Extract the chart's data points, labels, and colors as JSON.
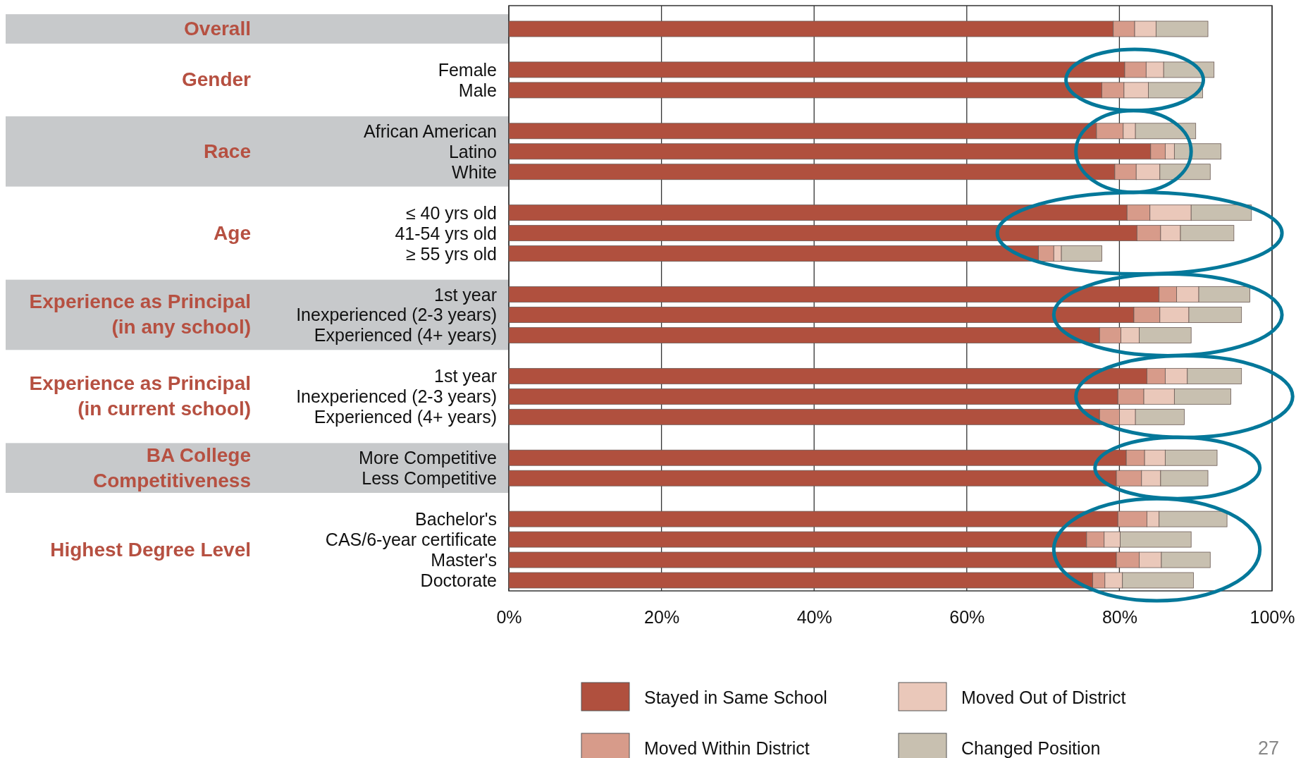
{
  "chart_data": {
    "type": "bar",
    "orientation": "horizontal",
    "stacked": true,
    "categories": [
      null,
      "Female",
      "Male",
      "African American",
      "Latino",
      "White",
      "≤ 40 yrs old",
      "41-54 yrs old",
      "≥ 55 yrs old",
      "1st year",
      "Inexperienced (2-3 years)",
      "Experienced (4+ years)",
      "1st year",
      "Inexperienced (2-3 years)",
      "Experienced (4+ years)",
      "More Competitive",
      "Less Competitive",
      "Bachelor's",
      "CAS/6-year certificate",
      "Master's",
      "Doctorate"
    ],
    "series": [
      {
        "name": "Stayed in Same School",
        "color": "#b0503e",
        "values": [
          79.2,
          80.7,
          77.7,
          77.0,
          84.1,
          79.4,
          81.0,
          82.3,
          69.4,
          85.2,
          81.9,
          77.4,
          83.6,
          79.8,
          77.4,
          80.9,
          79.6,
          79.8,
          75.7,
          79.6,
          76.5
        ]
      },
      {
        "name": "Moved Within District",
        "color": "#d79b8a",
        "values": [
          2.8,
          2.8,
          2.9,
          3.5,
          1.9,
          2.8,
          3.0,
          3.1,
          2.0,
          2.3,
          3.4,
          2.8,
          2.4,
          3.4,
          2.6,
          2.4,
          3.3,
          3.8,
          2.3,
          3.0,
          1.6
        ]
      },
      {
        "name": "Moved Out of District",
        "color": "#eac8ba",
        "values": [
          2.8,
          2.3,
          3.2,
          1.6,
          1.2,
          3.1,
          5.4,
          2.6,
          1.0,
          2.9,
          3.8,
          2.4,
          2.9,
          4.0,
          2.1,
          2.7,
          2.5,
          1.6,
          2.1,
          2.9,
          2.3
        ]
      },
      {
        "name": "Changed  Position",
        "color": "#c8c0b0",
        "values": [
          6.8,
          6.6,
          7.1,
          7.9,
          6.1,
          6.6,
          7.9,
          7.0,
          5.3,
          6.7,
          6.9,
          6.8,
          7.1,
          7.4,
          6.4,
          6.8,
          6.2,
          8.9,
          9.3,
          6.4,
          9.3
        ]
      }
    ],
    "xlim": [
      0,
      100
    ],
    "xticks": [
      {
        "value": 0,
        "label": "0%"
      },
      {
        "value": 20,
        "label": "20%"
      },
      {
        "value": 40,
        "label": "40%"
      },
      {
        "value": 60,
        "label": "60%"
      },
      {
        "value": 80,
        "label": "80%"
      },
      {
        "value": 100,
        "label": "100%"
      }
    ],
    "grid": "x",
    "legend": "bottom",
    "annotations": [
      "Overall",
      "Gender",
      "Race",
      "Age",
      "Experience as Principal (in any school)",
      "Experience as Principal (in current school)",
      "BA College Competitiveness",
      "Highest Degree Level",
      "27"
    ]
  }
}
